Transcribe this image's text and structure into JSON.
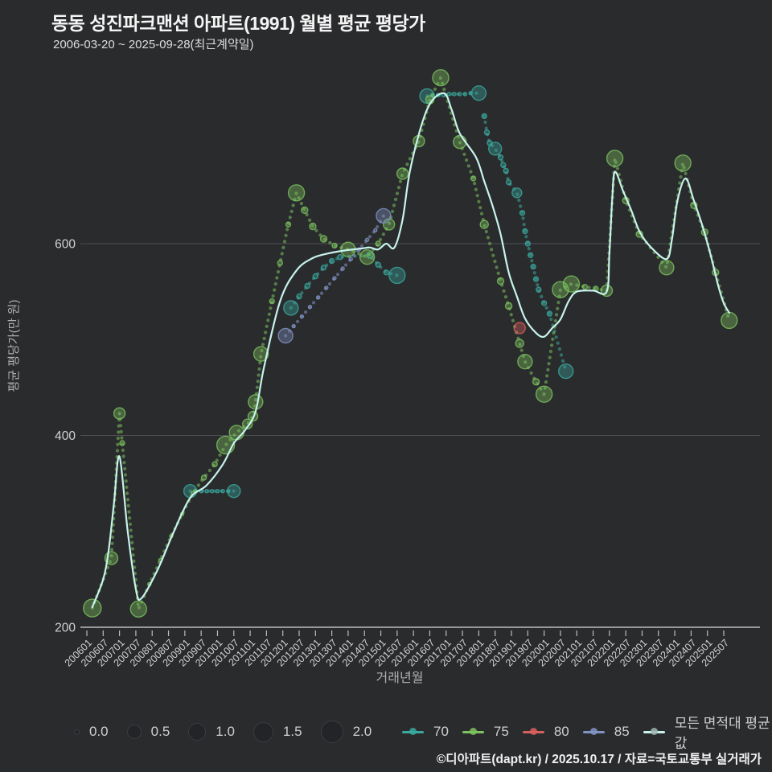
{
  "header": {
    "title": "동동 성진파크맨션 아파트(1991) 월별 평균 평당가",
    "subtitle": "2006-03-20 ~ 2025-09-28(최근계약일)"
  },
  "colors": {
    "background": "#2a2b2d",
    "gridline": "#4e4f52",
    "axis_line": "#bdbdbd",
    "tick_label": "#d2d2d2",
    "axis_title": "#b0b0b0",
    "avg_line": "#c7f3ec",
    "series_70": "#3ba99f",
    "series_75": "#7cc35f",
    "series_80": "#d95f5f",
    "series_85": "#8193c4",
    "size_dot": "#232428"
  },
  "chart_data": {
    "type": "scatter",
    "title": "동동 성진파크맨션 아파트(1991) 월별 평균 평당가",
    "xlabel": "거래년월",
    "ylabel": "평균 평당가(만 원)",
    "y_ticks": [
      200,
      400,
      600
    ],
    "ylim": [
      180,
      800
    ],
    "x_ticks": [
      "200601",
      "200607",
      "200701",
      "200707",
      "200801",
      "200807",
      "200901",
      "200907",
      "201001",
      "201007",
      "201101",
      "201107",
      "201201",
      "201207",
      "201301",
      "201307",
      "201401",
      "201407",
      "201501",
      "201507",
      "201601",
      "201607",
      "201701",
      "201707",
      "201801",
      "201807",
      "201901",
      "201907",
      "202001",
      "202007",
      "202101",
      "202107",
      "202201",
      "202207",
      "202301",
      "202307",
      "202401",
      "202407",
      "202501",
      "202507"
    ],
    "series": [
      {
        "name": "70",
        "color": "#3ba99f",
        "segments": [
          [
            [
              200903,
              342,
              8
            ],
            [
              200905,
              342,
              2
            ],
            [
              200907,
              342,
              2
            ],
            [
              200909,
              342,
              2
            ],
            [
              200911,
              342,
              2
            ],
            [
              201001,
              342,
              2
            ],
            [
              201003,
              342,
              2
            ],
            [
              201005,
              342,
              2
            ],
            [
              201007,
              342,
              8
            ]
          ],
          [
            [
              201204,
              533,
              9
            ],
            [
              201207,
              545,
              3
            ],
            [
              201210,
              556,
              3
            ],
            [
              201301,
              566,
              3
            ],
            [
              201304,
              575,
              3
            ],
            [
              201307,
              582,
              3
            ],
            [
              201310,
              586,
              3
            ],
            [
              201409,
              588,
              4
            ],
            [
              201412,
              578,
              3
            ],
            [
              201503,
              570,
              3
            ],
            [
              201507,
              567,
              10
            ]
          ],
          [
            [
              201606,
              754,
              9
            ],
            [
              201608,
              755,
              2
            ],
            [
              201610,
              755,
              2
            ],
            [
              201612,
              755,
              2
            ],
            [
              201702,
              756,
              2
            ],
            [
              201704,
              756,
              2
            ],
            [
              201706,
              756,
              2
            ],
            [
              201708,
              756,
              2
            ],
            [
              201710,
              757,
              2
            ],
            [
              201801,
              757,
              9
            ]
          ],
          [
            [
              201803,
              733,
              3
            ],
            [
              201804,
              716,
              3
            ],
            [
              201805,
              705,
              3
            ],
            [
              201807,
              699,
              8
            ],
            [
              201809,
              690,
              3
            ],
            [
              201810,
              682,
              3
            ],
            [
              201811,
              676,
              3
            ],
            [
              201812,
              664,
              3
            ],
            [
              201903,
              653,
              6
            ],
            [
              201905,
              632,
              3
            ],
            [
              201906,
              613,
              3
            ],
            [
              201907,
              600,
              3
            ],
            [
              201908,
              588,
              3
            ],
            [
              201909,
              576,
              3
            ],
            [
              201910,
              563,
              3
            ],
            [
              201911,
              552,
              3
            ],
            [
              202001,
              538,
              3
            ],
            [
              202003,
              527,
              3
            ],
            [
              202009,
              467,
              9
            ]
          ]
        ]
      },
      {
        "name": "75",
        "color": "#7cc35f",
        "segments": [
          [
            [
              200603,
              220,
              11
            ],
            [
              200610,
              272,
              8
            ],
            [
              200701,
              423,
              7
            ],
            [
              200702,
              392,
              3
            ],
            [
              200708,
              219,
              10
            ],
            [
              200712,
              245,
              2
            ],
            [
              200804,
              270,
              2
            ],
            [
              200808,
              295,
              2
            ],
            [
              200812,
              318,
              2
            ],
            [
              200904,
              340,
              2
            ],
            [
              200908,
              356,
              3
            ],
            [
              200912,
              370,
              3
            ],
            [
              201004,
              390,
              11
            ],
            [
              201008,
              403,
              9
            ],
            [
              201012,
              412,
              6
            ],
            [
              201102,
              420,
              6
            ],
            [
              201103,
              435,
              9
            ],
            [
              201105,
              485,
              9
            ],
            [
              201109,
              540,
              3
            ],
            [
              201112,
              580,
              3
            ],
            [
              201203,
              620,
              3
            ],
            [
              201206,
              653,
              10
            ],
            [
              201209,
              635,
              4
            ],
            [
              201212,
              618,
              4
            ],
            [
              201304,
              605,
              4
            ],
            [
              201308,
              598,
              3
            ],
            [
              201401,
              594,
              9
            ],
            [
              201408,
              586,
              9
            ],
            [
              201412,
              600,
              3
            ],
            [
              201504,
              620,
              7
            ],
            [
              201509,
              673,
              7
            ],
            [
              201603,
              707,
              7
            ],
            [
              201607,
              750,
              5
            ],
            [
              201611,
              773,
              10
            ],
            [
              201706,
              706,
              8
            ],
            [
              201711,
              668,
              3
            ],
            [
              201803,
              620,
              5
            ],
            [
              201809,
              561,
              4
            ],
            [
              201812,
              535,
              4
            ],
            [
              201904,
              496,
              5
            ],
            [
              201906,
              477,
              9
            ],
            [
              201910,
              456,
              4
            ],
            [
              202001,
              443,
              10
            ],
            [
              202007,
              552,
              10
            ],
            [
              202011,
              558,
              10
            ],
            [
              202104,
              555,
              3
            ],
            [
              202108,
              553,
              3
            ],
            [
              202112,
              551,
              7
            ],
            [
              202203,
              689,
              10
            ],
            [
              202207,
              645,
              4
            ],
            [
              202212,
              610,
              4
            ],
            [
              202310,
              575,
              9
            ],
            [
              202404,
              684,
              10
            ],
            [
              202408,
              640,
              4
            ],
            [
              202412,
              612,
              4
            ],
            [
              202504,
              570,
              4
            ],
            [
              202509,
              520,
              10
            ]
          ]
        ]
      },
      {
        "name": "80",
        "color": "#d95f5f",
        "segments": [
          [
            [
              201904,
              512,
              7
            ]
          ]
        ]
      },
      {
        "name": "85",
        "color": "#8193c4",
        "segments": [
          [
            [
              201202,
              504,
              9
            ],
            [
              201205,
              514,
              2
            ],
            [
              201208,
              524,
              2
            ],
            [
              201211,
              534,
              2
            ],
            [
              201302,
              544,
              2
            ],
            [
              201305,
              554,
              2
            ],
            [
              201308,
              564,
              2
            ],
            [
              201311,
              574,
              2
            ],
            [
              201402,
              584,
              2
            ],
            [
              201405,
              594,
              2
            ],
            [
              201408,
              604,
              2
            ],
            [
              201411,
              614,
              2
            ],
            [
              201502,
              629,
              9
            ]
          ]
        ]
      }
    ],
    "avg_line": {
      "name": "모든 면적대 평균값",
      "color": "#c7f3ec",
      "points": [
        [
          200603,
          221
        ],
        [
          200607,
          250
        ],
        [
          200609,
          280
        ],
        [
          200611,
          330
        ],
        [
          200701,
          378
        ],
        [
          200704,
          300
        ],
        [
          200707,
          240
        ],
        [
          200709,
          230
        ],
        [
          200803,
          260
        ],
        [
          200809,
          300
        ],
        [
          200903,
          335
        ],
        [
          200909,
          348
        ],
        [
          201003,
          370
        ],
        [
          201007,
          392
        ],
        [
          201011,
          405
        ],
        [
          201103,
          425
        ],
        [
          201106,
          470
        ],
        [
          201112,
          540
        ],
        [
          201206,
          572
        ],
        [
          201212,
          585
        ],
        [
          201306,
          590
        ],
        [
          201312,
          593
        ],
        [
          201406,
          595
        ],
        [
          201409,
          596
        ],
        [
          201412,
          594
        ],
        [
          201503,
          600
        ],
        [
          201506,
          596
        ],
        [
          201509,
          625
        ],
        [
          201512,
          680
        ],
        [
          201606,
          740
        ],
        [
          201612,
          757
        ],
        [
          201703,
          740
        ],
        [
          201706,
          715
        ],
        [
          201712,
          690
        ],
        [
          201803,
          665
        ],
        [
          201806,
          640
        ],
        [
          201809,
          610
        ],
        [
          201812,
          570
        ],
        [
          201903,
          545
        ],
        [
          201906,
          522
        ],
        [
          201910,
          507
        ],
        [
          202001,
          503
        ],
        [
          202004,
          512
        ],
        [
          202007,
          521
        ],
        [
          202010,
          540
        ],
        [
          202101,
          550
        ],
        [
          202107,
          551
        ],
        [
          202112,
          550
        ],
        [
          202201,
          590
        ],
        [
          202202,
          645
        ],
        [
          202203,
          675
        ],
        [
          202206,
          655
        ],
        [
          202209,
          635
        ],
        [
          202212,
          613
        ],
        [
          202304,
          597
        ],
        [
          202310,
          584
        ],
        [
          202312,
          605
        ],
        [
          202402,
          645
        ],
        [
          202405,
          668
        ],
        [
          202408,
          645
        ],
        [
          202411,
          620
        ],
        [
          202502,
          590
        ],
        [
          202505,
          556
        ],
        [
          202507,
          538
        ],
        [
          202509,
          528
        ]
      ]
    }
  },
  "legend": {
    "sizes": [
      {
        "label": "0.0",
        "d": 5
      },
      {
        "label": "0.5",
        "d": 16
      },
      {
        "label": "1.0",
        "d": 20
      },
      {
        "label": "1.5",
        "d": 23
      },
      {
        "label": "2.0",
        "d": 26
      }
    ],
    "series": [
      {
        "label": "70",
        "color": "#3ba99f",
        "dot": "#3ba99f"
      },
      {
        "label": "75",
        "color": "#7cc35f",
        "dot": "#7cc35f"
      },
      {
        "label": "80",
        "color": "#d95f5f",
        "dot": "#d95f5f"
      },
      {
        "label": "85",
        "color": "#8193c4",
        "dot": "#8193c4"
      },
      {
        "label": "모든 면적대 평균값",
        "color": "#c7f3ec",
        "dot": "#9fb6b4"
      }
    ]
  },
  "footer": {
    "credit": "©디아파트(dapt.kr) / 2025.10.17 / 자료=국토교통부 실거래가"
  }
}
